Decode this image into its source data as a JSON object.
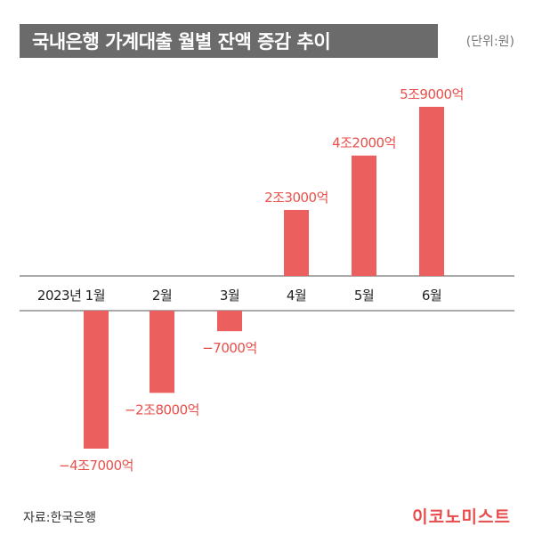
{
  "header": {
    "title": "국내은행 가계대출 월별 잔액 증감 추이",
    "unit": "(단위:원)"
  },
  "footer": {
    "source": "자료:한국은행",
    "logo": "이코노미스트"
  },
  "colors": {
    "bar": "#eb5f5f",
    "label": "#e8504b",
    "title_bg": "#6b6b6b",
    "axis": "#555555"
  },
  "chart_data": {
    "type": "bar",
    "categories": [
      "2023년 1월",
      "2월",
      "3월",
      "4월",
      "5월",
      "6월"
    ],
    "values": [
      -47000,
      -28000,
      -7000,
      23000,
      42000,
      59000
    ],
    "value_labels": [
      "−4조7000억",
      "−2조8000억",
      "−7000억",
      "2조3000억",
      "4조2000억",
      "5조9000억"
    ],
    "unit": "억원",
    "title": "국내은행 가계대출 월별 잔액 증감 추이",
    "xlabel": "",
    "ylabel": "",
    "grid": false,
    "legend": "none"
  }
}
